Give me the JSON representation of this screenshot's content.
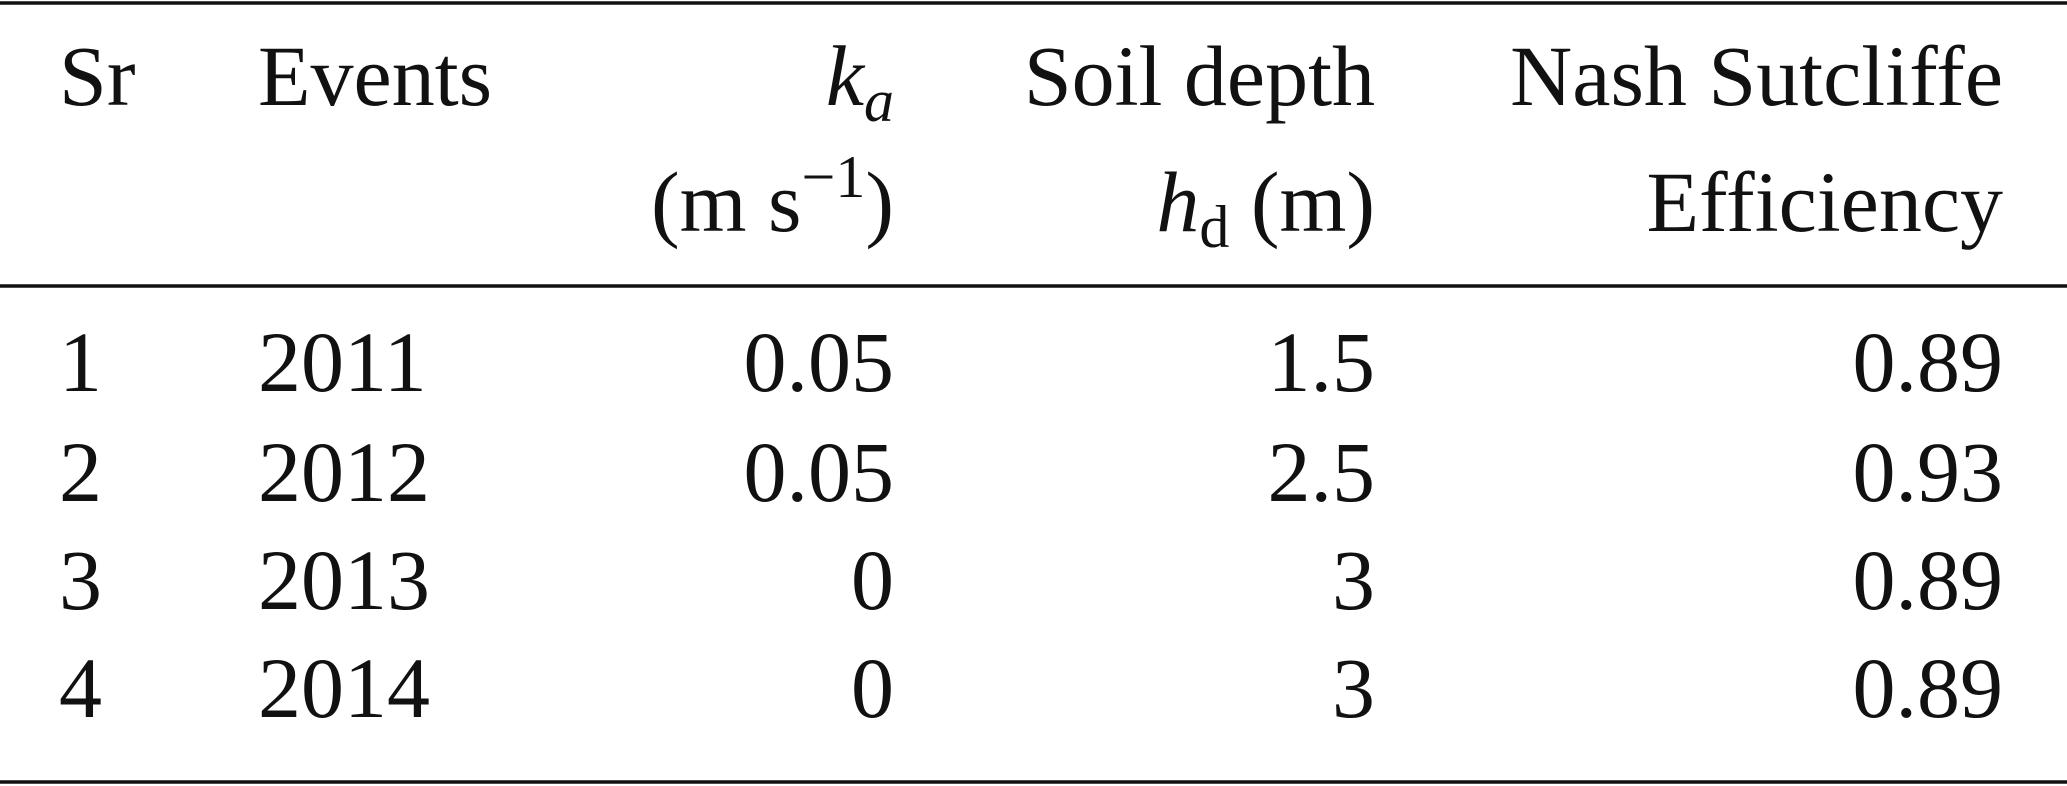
{
  "table": {
    "header": [
      [
        [
          "Sr"
        ]
      ],
      [
        [
          "Events"
        ]
      ],
      [
        [
          "k",
          "a"
        ],
        [
          "(m s",
          "−1",
          ")"
        ]
      ],
      [
        [
          "Soil depth"
        ],
        [
          "h",
          "d",
          " (m)"
        ]
      ],
      [
        [
          "Nash Sutcliffe"
        ],
        [
          "Efficiency"
        ]
      ]
    ],
    "rows": [
      [
        1,
        2011,
        0.05,
        1.5,
        0.89
      ],
      [
        2,
        2012,
        0.05,
        2.5,
        0.93
      ],
      [
        3,
        2013,
        0,
        3,
        0.89
      ],
      [
        4,
        2014,
        0,
        3,
        0.89
      ]
    ]
  }
}
